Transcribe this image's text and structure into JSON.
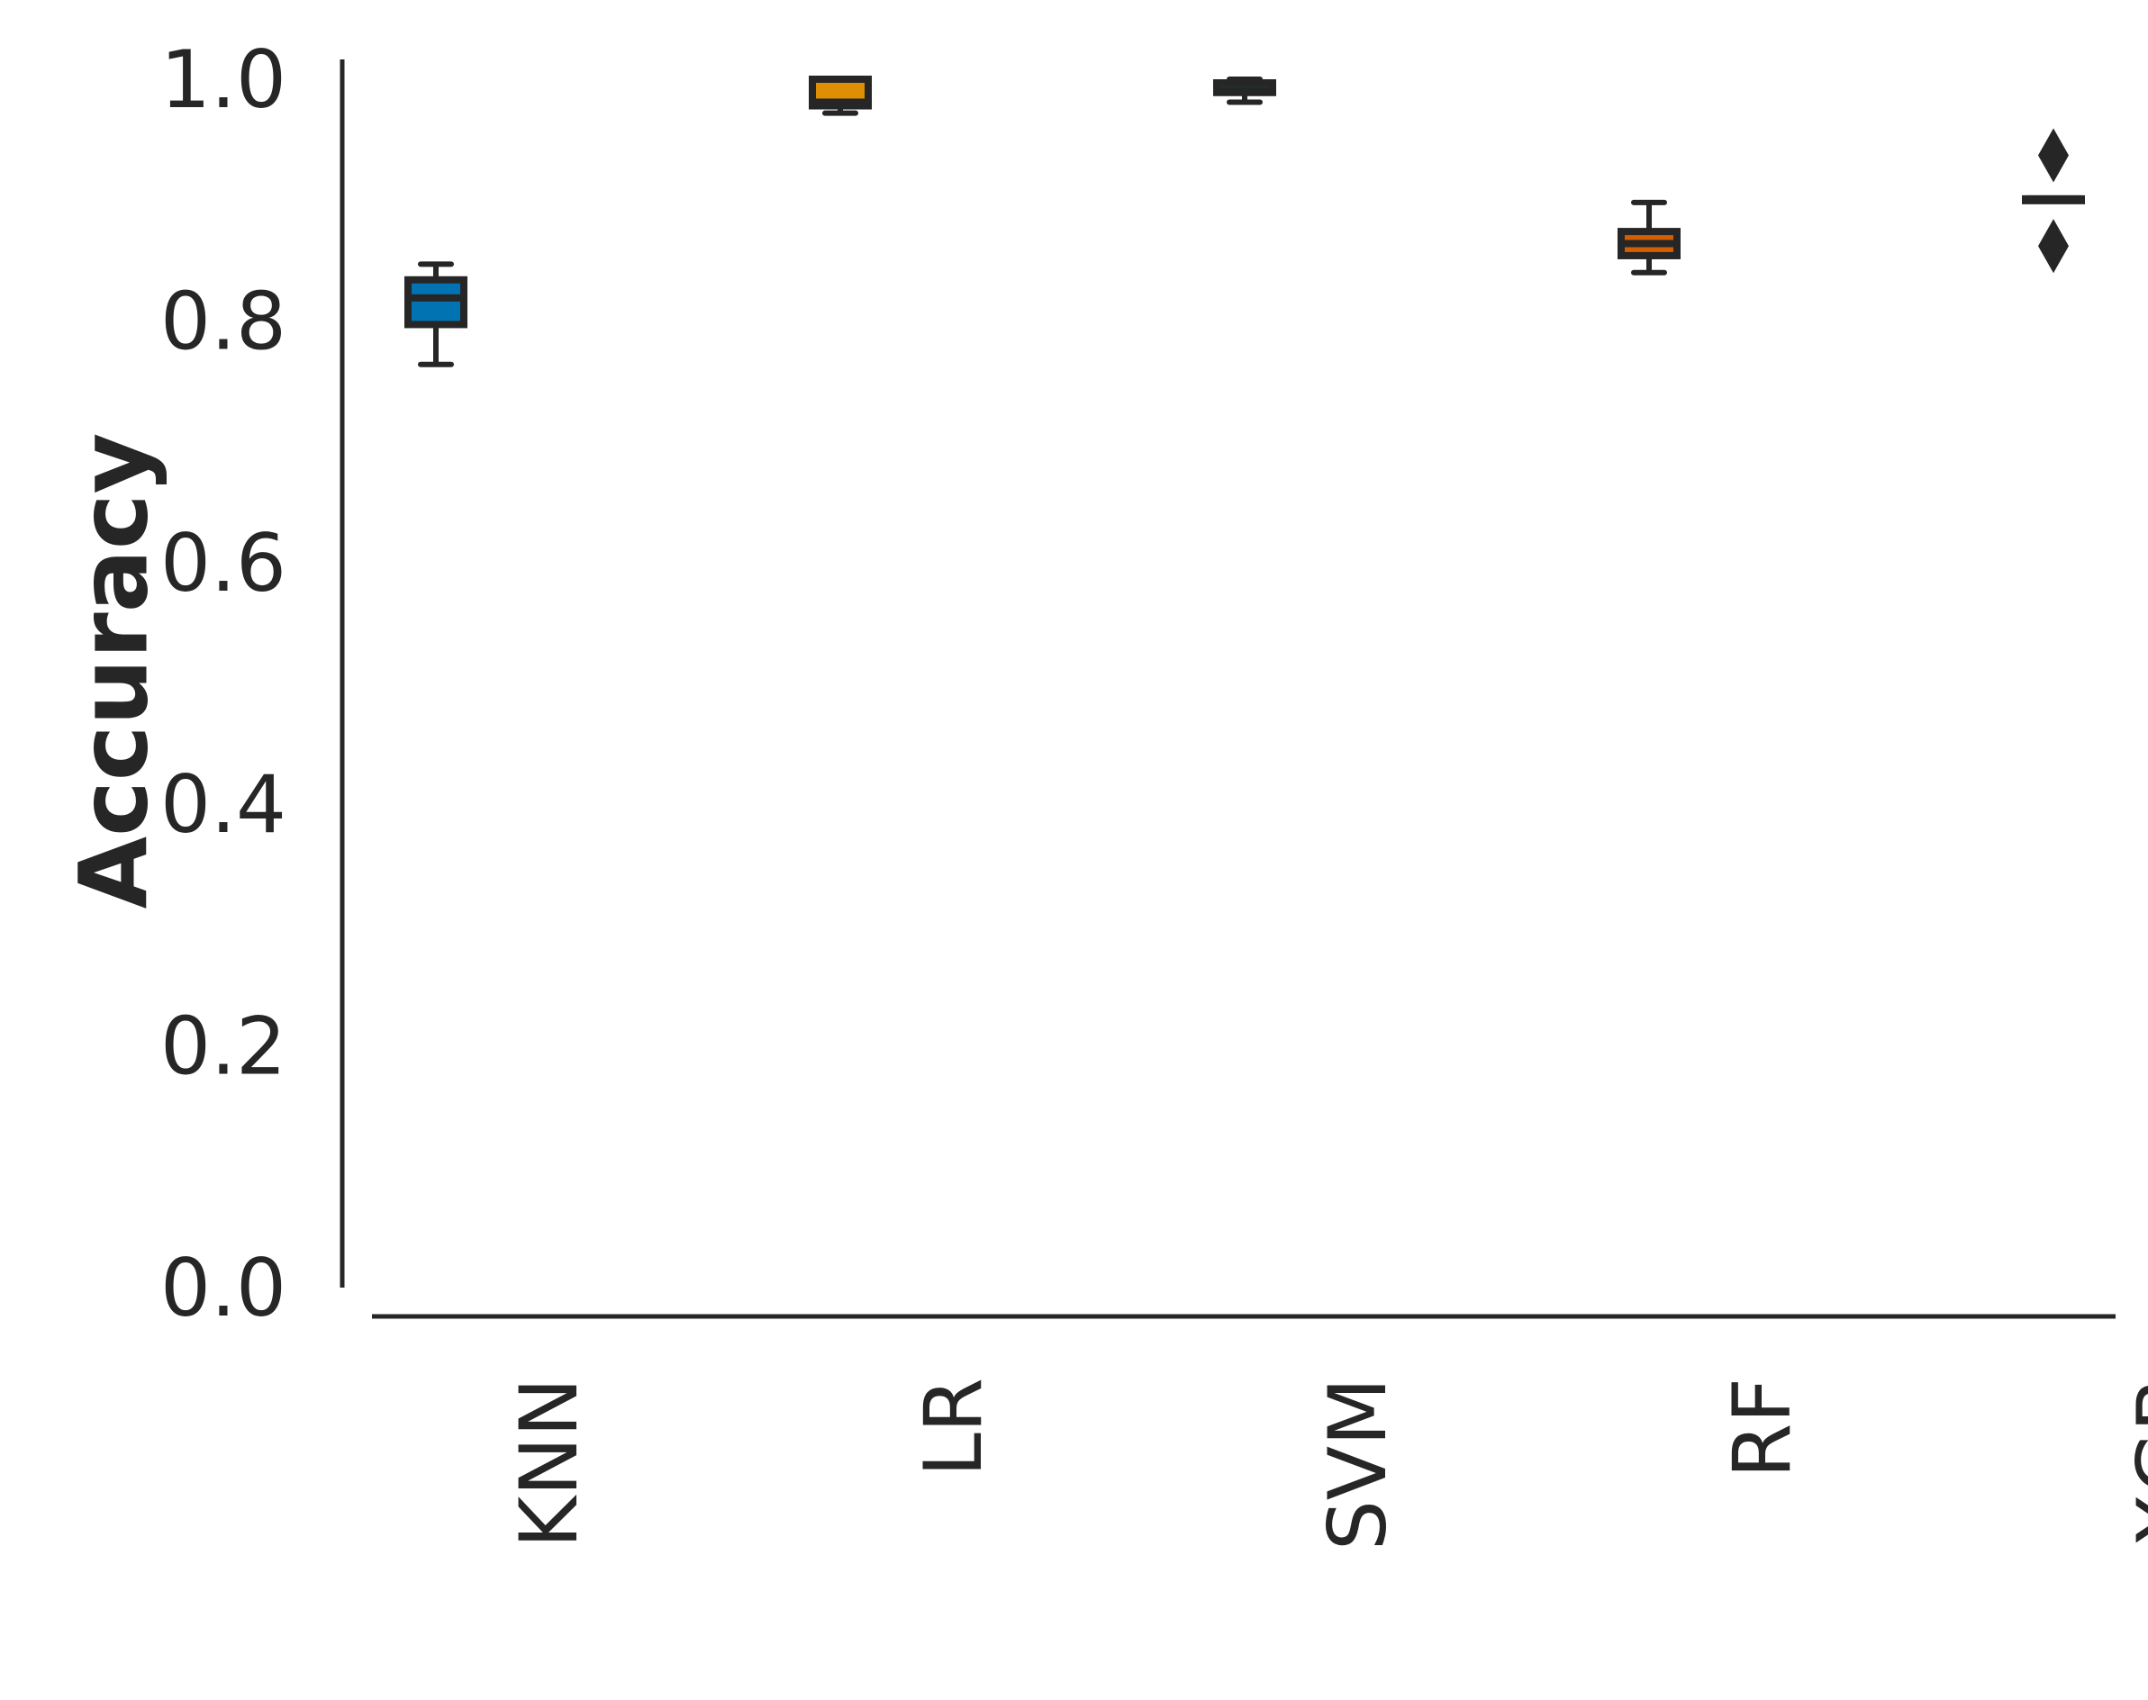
{
  "chart_data": {
    "type": "box",
    "title": "",
    "xlabel": "",
    "ylabel": "Accuracy",
    "ylim": [
      0.0,
      1.0
    ],
    "yticks": [
      "0.0",
      "0.2",
      "0.4",
      "0.6",
      "0.8",
      "1.0"
    ],
    "grid": false,
    "categories": [
      "KNN",
      "LR",
      "SVM",
      "RF",
      "XGB"
    ],
    "boxes": [
      {
        "category": "KNN",
        "whisker_low": 0.764,
        "q1": 0.797,
        "median": 0.819,
        "q3": 0.834,
        "whisker_high": 0.847,
        "fliers": [],
        "color": "#0173b2"
      },
      {
        "category": "LR",
        "whisker_low": 0.972,
        "q1": 0.978,
        "median": 0.981,
        "q3": 1.0,
        "whisker_high": 1.0,
        "fliers": [],
        "color": "#de8f05"
      },
      {
        "category": "SVM",
        "whisker_low": 0.981,
        "q1": 0.989,
        "median": 0.991,
        "q3": 0.997,
        "whisker_high": 1.0,
        "fliers": [],
        "color": "#029e73"
      },
      {
        "category": "RF",
        "whisker_low": 0.84,
        "q1": 0.854,
        "median": 0.864,
        "q3": 0.874,
        "whisker_high": 0.898,
        "fliers": [],
        "color": "#d55e00"
      },
      {
        "category": "XGB",
        "whisker_low": 0.901,
        "q1": 0.901,
        "median": 0.901,
        "q3": 0.901,
        "whisker_high": 0.901,
        "fliers": [
          0.862,
          0.937
        ],
        "color": "#cc78bc"
      }
    ]
  }
}
